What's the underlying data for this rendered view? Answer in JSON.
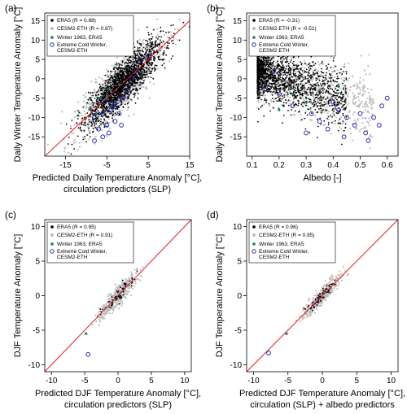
{
  "colors": {
    "era5": "#000000",
    "cesm": "#bdbdbd",
    "winter1963": "#1a7a5a",
    "extreme": "#2b2bb5",
    "refline": "#e41a1c"
  },
  "chart_data": [
    {
      "id": "a",
      "panel_label": "(a)",
      "type": "scatter",
      "xlabel": "Predicted Daily Temperature Anomaly [°C],",
      "xlabel2": "circulation predictors (SLP)",
      "ylabel": "Daily Winter Temperature Anomaly [°C]",
      "xlim": [
        -20,
        15
      ],
      "ylim": [
        -20,
        17
      ],
      "xticks": [
        -15,
        -5,
        5,
        15
      ],
      "yticks": [
        -15,
        -10,
        -5,
        0,
        5,
        10,
        15
      ],
      "diagonal": true,
      "legend": [
        "ERA5 (R = 0.88)",
        "CESM2-ETH (R = 0.87)",
        "Winter 1963, ERA5",
        "Extreme Cold Winter,",
        "CESM2-ETH"
      ],
      "clouds": [
        {
          "series": "cesm",
          "kind": "linear",
          "slope": 1.0,
          "spread": 3.2,
          "x": [
            -13,
            9
          ],
          "n": 1100
        },
        {
          "series": "era5",
          "kind": "linear",
          "slope": 1.0,
          "spread": 2.6,
          "x": [
            -11,
            9
          ],
          "n": 1800
        }
      ],
      "winter1963": [
        [
          -9,
          -8
        ],
        [
          -6.5,
          -5
        ],
        [
          -4,
          -3
        ],
        [
          -2,
          -1.5
        ],
        [
          -12,
          -9.5
        ],
        [
          -7.5,
          -9
        ],
        [
          -5,
          -4.5
        ],
        [
          -3,
          -6
        ]
      ],
      "extreme": [
        [
          -8,
          -10
        ],
        [
          -6,
          -9
        ],
        [
          -5,
          -12
        ],
        [
          -4,
          -8
        ],
        [
          -3,
          -11
        ],
        [
          -2.5,
          -6
        ],
        [
          -7,
          -13
        ],
        [
          -4.5,
          -14
        ],
        [
          -1,
          -5
        ],
        [
          -3.5,
          -7
        ],
        [
          -6,
          -15
        ],
        [
          -2,
          -9
        ],
        [
          0,
          -3
        ],
        [
          1,
          0
        ],
        [
          -5.5,
          -6
        ],
        [
          -8,
          -16
        ],
        [
          2,
          2
        ],
        [
          3,
          5
        ],
        [
          5,
          6
        ],
        [
          -1.5,
          -12
        ]
      ]
    },
    {
      "id": "b",
      "panel_label": "(b)",
      "type": "scatter",
      "xlabel": "Albedo [-]",
      "xlabel2": "",
      "ylabel": "Daily Winter Temperature Anomaly [°C]",
      "xlim": [
        0.08,
        0.64
      ],
      "ylim": [
        -20,
        17
      ],
      "xticks": [
        0.1,
        0.2,
        0.3,
        0.4,
        0.5,
        0.6
      ],
      "yticks": [
        -15,
        -10,
        -5,
        0,
        5,
        10,
        15
      ],
      "diagonal": false,
      "legend": [
        "ERA5 (R = -0.31)",
        "CESM2-ETH (R = -0.51)",
        "Winter 1963, ERA5",
        "Extreme Cold Winter,",
        "CESM2-ETH"
      ],
      "clouds": [
        {
          "series": "cesm",
          "kind": "albedo",
          "x": [
            0.12,
            0.55
          ],
          "n": 1100
        },
        {
          "series": "era5",
          "kind": "albedo",
          "x": [
            0.12,
            0.45
          ],
          "n": 1600
        }
      ],
      "winter1963": [
        [
          0.2,
          -8
        ],
        [
          0.25,
          -4
        ],
        [
          0.3,
          -6
        ],
        [
          0.35,
          -3
        ],
        [
          0.42,
          -2
        ]
      ],
      "extreme": [
        [
          0.42,
          -8
        ],
        [
          0.45,
          -10
        ],
        [
          0.48,
          -12
        ],
        [
          0.5,
          -9
        ],
        [
          0.52,
          -14
        ],
        [
          0.55,
          -10
        ],
        [
          0.57,
          -12
        ],
        [
          0.58,
          -7
        ],
        [
          0.4,
          -6
        ],
        [
          0.35,
          -11
        ],
        [
          0.32,
          -9
        ],
        [
          0.38,
          -13
        ],
        [
          0.44,
          -15
        ],
        [
          0.53,
          -16
        ],
        [
          0.6,
          -5
        ],
        [
          0.15,
          -2
        ],
        [
          0.2,
          -4
        ],
        [
          0.18,
          2
        ],
        [
          0.25,
          -7
        ],
        [
          0.3,
          -14
        ]
      ]
    },
    {
      "id": "c",
      "panel_label": "(c)",
      "type": "scatter",
      "xlabel": "Predicted DJF Temperature Anomaly [°C],",
      "xlabel2": "circulation predictors (SLP)",
      "ylabel": "DJF Temperature Anomaly [°C]",
      "xlim": [
        -11,
        11
      ],
      "ylim": [
        -11,
        11
      ],
      "xticks": [
        -10,
        -5,
        0,
        5,
        10
      ],
      "yticks": [
        -10,
        -5,
        0,
        5,
        10
      ],
      "diagonal": true,
      "legend": [
        "ERA5 (R = 0.95)",
        "CESM2-ETH (R = 0.91)",
        "Winter 1963, ERA5",
        "Extreme Cold Winter,",
        "CESM2-ETH"
      ],
      "clouds": [
        {
          "series": "cesm",
          "kind": "linear",
          "slope": 1.0,
          "spread": 0.7,
          "x": [
            -3,
            3
          ],
          "n": 400
        },
        {
          "series": "era5",
          "kind": "linear",
          "slope": 1.0,
          "spread": 0.5,
          "x": [
            -2.5,
            2.5
          ],
          "n": 70
        }
      ],
      "winter1963": [
        [
          -4.8,
          -5.5
        ]
      ],
      "extreme": [
        [
          -4.5,
          -8.5
        ]
      ]
    },
    {
      "id": "d",
      "panel_label": "(d)",
      "type": "scatter",
      "xlabel": "Predicted DJF Temperature Anomaly [°C],",
      "xlabel2": "circulation (SLP) + albedo predictors",
      "ylabel": "DJF Temperature Anomaly [°C]",
      "xlim": [
        -11,
        11
      ],
      "ylim": [
        -11,
        11
      ],
      "xticks": [
        -10,
        -5,
        0,
        5,
        10
      ],
      "yticks": [
        -10,
        -5,
        0,
        5,
        10
      ],
      "diagonal": true,
      "legend": [
        "ERA5 (R = 0.96)",
        "CESM2-ETH (R = 0.95)",
        "Winter 1963, ERA5",
        "Extreme Cold Winter,",
        "CESM2-ETH"
      ],
      "clouds": [
        {
          "series": "cesm",
          "kind": "linear",
          "slope": 1.0,
          "spread": 0.55,
          "x": [
            -3,
            3
          ],
          "n": 400
        },
        {
          "series": "era5",
          "kind": "linear",
          "slope": 1.0,
          "spread": 0.4,
          "x": [
            -2.5,
            2.5
          ],
          "n": 70
        }
      ],
      "winter1963": [
        [
          -5.2,
          -5.5
        ]
      ],
      "extreme": [
        [
          -7.8,
          -8.3
        ]
      ]
    }
  ]
}
